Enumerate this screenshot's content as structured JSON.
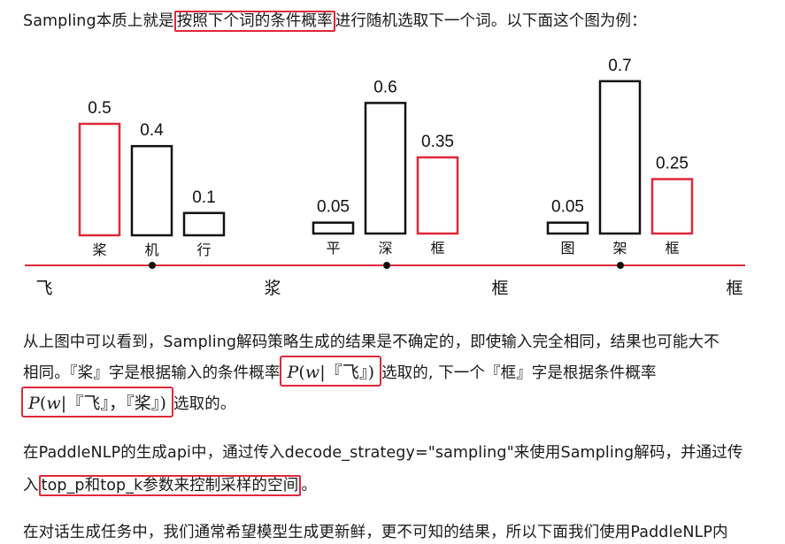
{
  "intro": {
    "pre": "Sampling本质上就是",
    "highlight": "按照下个词的条件概率",
    "post": "进行随机选取下一个词。以下面这个图为例："
  },
  "chart_data": {
    "type": "bar",
    "groups": [
      {
        "token": "浆",
        "bars": [
          {
            "label": "桨",
            "value": 0.5,
            "highlight": true
          },
          {
            "label": "机",
            "value": 0.4,
            "highlight": false
          },
          {
            "label": "行",
            "value": 0.1,
            "highlight": false
          }
        ]
      },
      {
        "token": "框",
        "bars": [
          {
            "label": "平",
            "value": 0.05,
            "highlight": false
          },
          {
            "label": "深",
            "value": 0.6,
            "highlight": false
          },
          {
            "label": "框",
            "value": 0.35,
            "highlight": true
          }
        ]
      },
      {
        "token": "框",
        "bars": [
          {
            "label": "图",
            "value": 0.05,
            "highlight": false
          },
          {
            "label": "架",
            "value": 0.7,
            "highlight": false
          },
          {
            "label": "框",
            "value": 0.25,
            "highlight": true
          }
        ]
      }
    ],
    "start_token": "飞",
    "ylim": [
      0,
      0.7
    ],
    "colors": {
      "highlight": "#e0283a",
      "normal": "#111111",
      "axis": "#e0283a"
    }
  },
  "para2": {
    "line1": "从上图中可以看到，Sampling解码策略生成的结果是不确定的，即使输入完全相同，结果也可能大不",
    "line2_pre": "相同。『桨』字是根据输入的条件概率",
    "math1": {
      "p": "P",
      "open": "(",
      "w": "w",
      "bar": "|",
      "cond": "『飞』",
      "close": ")"
    },
    "line2_post": "选取的, 下一个『框』字是根据条件概率",
    "math2": {
      "p": "P",
      "open": "(",
      "w": "w",
      "bar": "|",
      "cond": "『飞』，『桨』",
      "close": ")"
    },
    "line3_post": "选取的。"
  },
  "para3": {
    "line1": "在PaddleNLP的生成api中，通过传入decode_strategy=\"sampling\"来使用Sampling解码，并通过传",
    "line2_pre": "入",
    "line2_highlight": "top_p和top_k参数来控制采样的空间",
    "line2_post": "。"
  },
  "para4": {
    "line1": "在对话生成任务中，我们通常希望模型生成更新鲜，更不可知的结果，所以下面我们使用PaddleNLP内"
  }
}
